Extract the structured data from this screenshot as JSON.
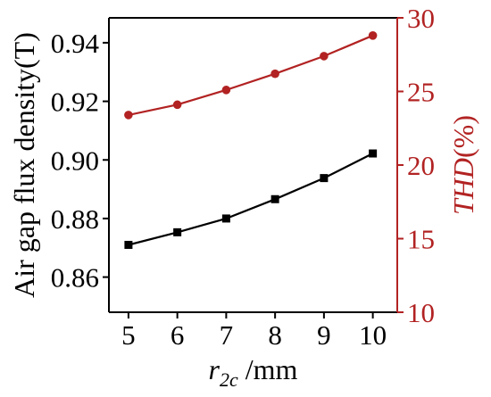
{
  "chart_data": {
    "type": "line",
    "x": [
      5,
      6,
      7,
      8,
      9,
      10
    ],
    "xlabel": {
      "base": "r",
      "sub": "2c",
      "rest": " /mm"
    },
    "xlim": [
      4.6,
      10.5
    ],
    "xticks": [
      "5",
      "6",
      "7",
      "8",
      "9",
      "10"
    ],
    "left_axis": {
      "label": "Air gap flux density(T)",
      "ylim": [
        0.848,
        0.9485
      ],
      "ticks": [
        "0.86",
        "0.88",
        "0.90",
        "0.92",
        "0.94"
      ],
      "color": "#000000"
    },
    "right_axis": {
      "label_italic": "THD",
      "label_rest": "(%)",
      "ylim": [
        10,
        30
      ],
      "ticks": [
        "10",
        "15",
        "20",
        "25",
        "30"
      ],
      "color": "#b22222"
    },
    "series": [
      {
        "axis": "left",
        "marker": "square",
        "color": "#000000",
        "values": [
          0.871,
          0.8753,
          0.88,
          0.8866,
          0.8938,
          0.9022
        ]
      },
      {
        "axis": "right",
        "marker": "circle",
        "color": "#b22222",
        "values": [
          23.4,
          24.1,
          25.1,
          26.2,
          27.4,
          28.8
        ]
      }
    ]
  }
}
